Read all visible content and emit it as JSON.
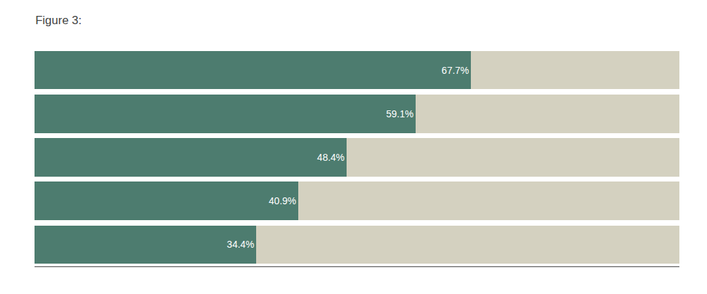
{
  "chart_data": {
    "type": "bar",
    "title": "Figure 3:",
    "orientation": "horizontal",
    "stacked": true,
    "categories": [
      null,
      null,
      null,
      null,
      null
    ],
    "series": [
      {
        "color": "#4d7c6f",
        "values": [
          67.7,
          59.1,
          48.4,
          40.9,
          34.4
        ],
        "data_labels": true,
        "value_labels": [
          "67.7%",
          "59.1%",
          "48.4%",
          "40.9%",
          "34.4%"
        ]
      },
      {
        "color": "#d4d1c0",
        "values": [
          32.3,
          40.9,
          51.6,
          59.1,
          65.6
        ]
      }
    ],
    "xlim": [
      0,
      100
    ],
    "grid": false,
    "tick_labels": false
  }
}
